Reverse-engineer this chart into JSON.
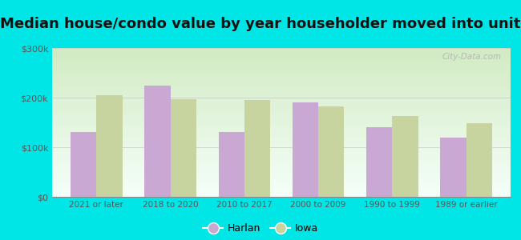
{
  "title": "Median house/condo value by year householder moved into unit",
  "categories": [
    "2021 or later",
    "2018 to 2020",
    "2010 to 2017",
    "2000 to 2009",
    "1990 to 1999",
    "1989 or earlier"
  ],
  "harlan_values": [
    130000,
    225000,
    130000,
    190000,
    140000,
    120000
  ],
  "iowa_values": [
    205000,
    197000,
    195000,
    182000,
    163000,
    148000
  ],
  "harlan_color": "#c9a8d4",
  "iowa_color": "#c8d4a0",
  "background_color": "#00e5e5",
  "plot_bg_top": "#f5fffa",
  "plot_bg_bottom": "#d8efc8",
  "ylim": [
    0,
    300000
  ],
  "yticks": [
    0,
    100000,
    200000,
    300000
  ],
  "ytick_labels": [
    "$0",
    "$100k",
    "$200k",
    "$300k"
  ],
  "bar_width": 0.35,
  "title_fontsize": 13,
  "legend_labels": [
    "Harlan",
    "Iowa"
  ],
  "watermark": "City-Data.com"
}
